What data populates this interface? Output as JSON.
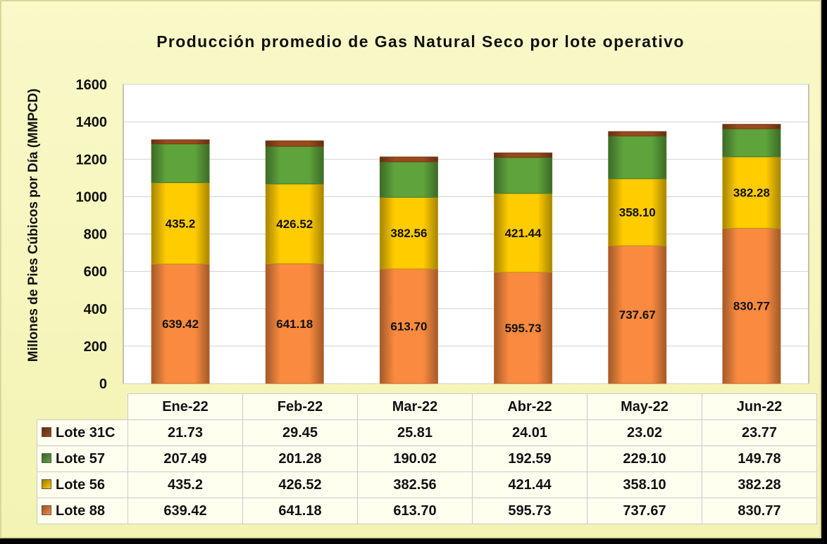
{
  "chart_data": {
    "type": "bar",
    "stacked": true,
    "title": "Producción promedio de Gas Natural Seco por lote operativo",
    "ylabel": "Millones de Pies Cúbicos por Día (MMPCD)",
    "xlabel": "",
    "ylim": [
      0,
      1600
    ],
    "yticks": [
      "0",
      "200",
      "400",
      "600",
      "800",
      "1000",
      "1200",
      "1400",
      "1600"
    ],
    "grid": true,
    "categories": [
      "Ene-22",
      "Feb-22",
      "Mar-22",
      "Abr-22",
      "May-22",
      "Jun-22"
    ],
    "series": [
      {
        "name": "Lote 88",
        "color": "#f98a3f",
        "values": [
          639.42,
          641.18,
          613.7,
          595.73,
          737.67,
          830.77
        ],
        "labels": [
          "639.42",
          "641.18",
          "613.70",
          "595.73",
          "737.67",
          "830.77"
        ]
      },
      {
        "name": "Lote 56",
        "color": "#ffcc00",
        "values": [
          435.2,
          426.52,
          382.56,
          421.44,
          358.1,
          382.28
        ],
        "labels": [
          "435.2",
          "426.52",
          "382.56",
          "421.44",
          "358.10",
          "382.28"
        ]
      },
      {
        "name": "Lote 57",
        "color": "#5ea33c",
        "values": [
          207.49,
          201.28,
          190.02,
          192.59,
          229.1,
          149.78
        ],
        "labels": [
          "207.49",
          "201.28",
          "190.02",
          "192.59",
          "229.10",
          "149.78"
        ]
      },
      {
        "name": "Lote 31C",
        "color": "#9a4a1c",
        "values": [
          21.73,
          29.45,
          25.81,
          24.01,
          23.02,
          23.77
        ],
        "labels": [
          "21.73",
          "29.45",
          "25.81",
          "24.01",
          "23.02",
          "23.77"
        ]
      }
    ]
  }
}
